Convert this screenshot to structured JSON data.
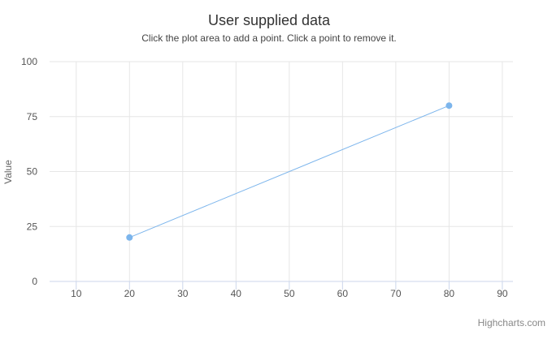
{
  "chart_data": {
    "type": "scatter",
    "title": "User supplied data",
    "subtitle": "Click the plot area to add a point. Click a point to remove it.",
    "xlabel": "",
    "ylabel": "Value",
    "xlim": [
      5,
      92
    ],
    "ylim": [
      0,
      100
    ],
    "x_ticks": [
      10,
      20,
      30,
      40,
      50,
      60,
      70,
      80,
      90
    ],
    "y_ticks": [
      0,
      25,
      50,
      75,
      100
    ],
    "grid": true,
    "line_connected": true,
    "series": [
      {
        "color": "#7cb5ec",
        "points": [
          {
            "x": 20,
            "y": 20
          },
          {
            "x": 80,
            "y": 80
          }
        ]
      }
    ]
  },
  "credits": "Highcharts.com"
}
